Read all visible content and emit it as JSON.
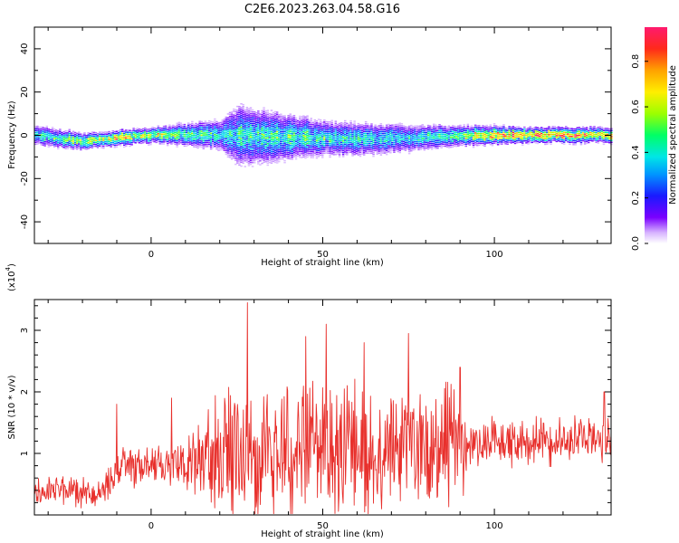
{
  "title": "C2E6.2023.263.04.58.G16",
  "colors": {
    "snr_line": "#e8302c",
    "axis": "#000000",
    "spectrogram_bg": "#ffffff"
  },
  "colorbar": {
    "label": "Normalized spectral amplitude",
    "ticks": [
      "0.0",
      "0.2",
      "0.4",
      "0.6",
      "0.8"
    ],
    "range": [
      0,
      0.95
    ]
  },
  "chart_data": [
    {
      "type": "heatmap",
      "title": "C2E6.2023.263.04.58.G16",
      "xlabel": "Height of straight line (km)",
      "ylabel": "Frequency (Hz)",
      "xlim": [
        -34,
        134
      ],
      "ylim": [
        -50,
        50
      ],
      "xticks": [
        0,
        50,
        100
      ],
      "xtick_labels": [
        "0",
        "50",
        "100"
      ],
      "yticks": [
        -40,
        -20,
        0,
        20,
        40
      ],
      "ytick_labels": [
        "-40",
        "-20",
        "0",
        "20",
        "40"
      ],
      "colorscale": "rainbow (white-violet-blue-cyan-green-yellow-orange-red-magenta)",
      "band": {
        "description": "energy concentrated near 0 Hz; broadest spread around 20-60 km",
        "center_freq": [
          [
            -34,
            0
          ],
          [
            -20,
            -3
          ],
          [
            0,
            0
          ],
          [
            20,
            0
          ],
          [
            40,
            -1
          ],
          [
            60,
            -2
          ],
          [
            80,
            -1
          ],
          [
            100,
            0
          ],
          [
            134,
            0
          ]
        ],
        "half_width_hz": [
          [
            -34,
            4
          ],
          [
            -15,
            3
          ],
          [
            0,
            3
          ],
          [
            20,
            6
          ],
          [
            25,
            12
          ],
          [
            35,
            10
          ],
          [
            50,
            7
          ],
          [
            70,
            6
          ],
          [
            90,
            4
          ],
          [
            110,
            3
          ],
          [
            134,
            3
          ]
        ],
        "peak_amplitude": [
          [
            -34,
            0.45
          ],
          [
            -10,
            0.85
          ],
          [
            0,
            0.7
          ],
          [
            20,
            0.5
          ],
          [
            40,
            0.55
          ],
          [
            60,
            0.5
          ],
          [
            80,
            0.45
          ],
          [
            100,
            0.9
          ],
          [
            115,
            0.95
          ],
          [
            134,
            0.85
          ]
        ]
      }
    },
    {
      "type": "line",
      "xlabel": "Height of straight line (km)",
      "ylabel": "SNR (10 * v/v)",
      "y_multiplier_label": "(x10",
      "y_multiplier_exp": "4",
      "xlim": [
        -34,
        134
      ],
      "ylim": [
        0,
        3.5
      ],
      "xticks": [
        0,
        50,
        100
      ],
      "xtick_labels": [
        "0",
        "50",
        "100"
      ],
      "yticks": [
        1,
        2,
        3
      ],
      "ytick_labels": [
        "1",
        "2",
        "3"
      ],
      "series": [
        {
          "color": "#e8302c",
          "envelope": {
            "description": "noisy SNR trace; low at start, bursty spikes 20-90 km, moderate plateau after 95 km",
            "mean": [
              [
                -34,
                0.45
              ],
              [
                -15,
                0.35
              ],
              [
                -10,
                0.75
              ],
              [
                0,
                0.85
              ],
              [
                10,
                0.8
              ],
              [
                20,
                1.0
              ],
              [
                40,
                1.05
              ],
              [
                60,
                1.1
              ],
              [
                80,
                1.1
              ],
              [
                95,
                1.2
              ],
              [
                110,
                1.2
              ],
              [
                134,
                1.25
              ]
            ],
            "spread": [
              [
                -34,
                0.25
              ],
              [
                -15,
                0.2
              ],
              [
                -10,
                0.35
              ],
              [
                0,
                0.3
              ],
              [
                10,
                0.35
              ],
              [
                20,
                0.9
              ],
              [
                30,
                1.2
              ],
              [
                50,
                1.1
              ],
              [
                70,
                1.0
              ],
              [
                90,
                0.9
              ],
              [
                95,
                0.35
              ],
              [
                134,
                0.35
              ]
            ],
            "peaks": [
              [
                -10,
                1.8
              ],
              [
                6,
                1.9
              ],
              [
                28,
                3.45
              ],
              [
                45,
                2.9
              ],
              [
                51,
                3.1
              ],
              [
                62,
                2.8
              ],
              [
                75,
                2.95
              ],
              [
                90,
                2.4
              ],
              [
                132,
                2.0
              ]
            ]
          }
        }
      ]
    }
  ]
}
